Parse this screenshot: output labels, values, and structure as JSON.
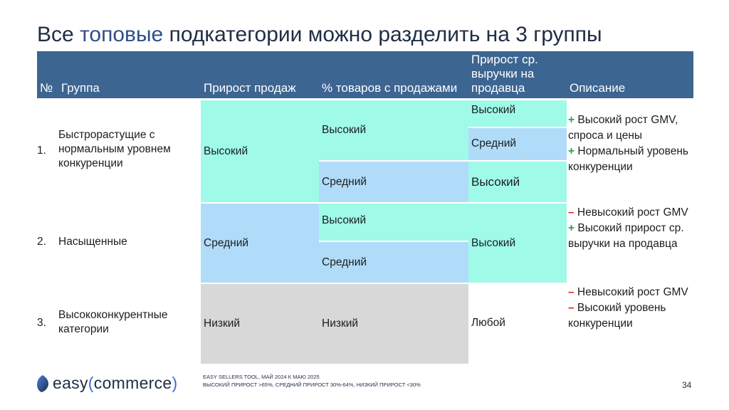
{
  "title": {
    "pre": "Все ",
    "highlight": "топовые",
    "post": " подкатегории можно разделить на 3 группы"
  },
  "table": {
    "headers": [
      "№",
      "Группа",
      "Прирост продаж",
      "% товаров с продажами",
      "Прирост ср. выручки на продавца",
      "Описание"
    ],
    "rows": [
      {
        "num": "1.",
        "group": "Быстрорастущие с нормальным уровнем конкуренции",
        "sales_growth": "Высокий",
        "pct_items": [
          "Высокий",
          "Средний"
        ],
        "rev_growth": [
          "Высокий",
          "Средний",
          "Высокий"
        ]
      },
      {
        "num": "2.",
        "group": "Насыщенные",
        "sales_growth": "Средний",
        "pct_items": [
          "Высокий",
          "Средний"
        ],
        "rev_growth": [
          "Высокий"
        ]
      },
      {
        "num": "3.",
        "group": "Высококонкурентные категории",
        "sales_growth": "Низкий",
        "pct_items": [
          "Низкий"
        ],
        "rev_growth": [
          "Любой"
        ]
      }
    ],
    "descriptions": {
      "g1": [
        {
          "sign": "+",
          "text": " Высокий рост GMV, спроса и цены"
        },
        {
          "sign": "+",
          "text": " Нормальный уровень конкуренции"
        }
      ],
      "g2": [
        {
          "sign": "–",
          "text": " Невысокий рост GMV"
        },
        {
          "sign": "+",
          "text": " Высокий прирост ср. выручки на продавца"
        }
      ],
      "g3": [
        {
          "sign": "–",
          "text": " Невысокий рост GMV"
        },
        {
          "sign": "–",
          "text": " Высокий уровень конкуренции"
        }
      ]
    }
  },
  "footer": {
    "logo_left": "easy",
    "logo_paren_open": "(",
    "logo_right": "commerce",
    "logo_paren_close": ")",
    "source_line1": "EASY SELLERS TOOL, МАЙ 2024 К МАЮ 2025",
    "source_line2": "ВЫСОКИЙ ПРИРОСТ >65%, СРЕДНИЙ ПРИРОСТ 30%-64%, НИЗКИЙ ПРИРОСТ <30%",
    "page": "34"
  },
  "colors": {
    "header": "#3d6591",
    "high": "#9ffae8",
    "medium": "#b1dcf9",
    "low": "#d8d8d8",
    "plus": "#1da84a",
    "minus": "#e2231a"
  }
}
